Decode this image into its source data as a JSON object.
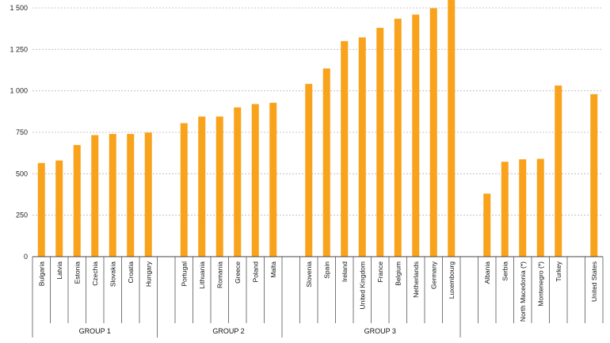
{
  "chart_data": {
    "type": "bar",
    "title": "",
    "xlabel": "",
    "ylabel": "",
    "ylim": [
      0,
      1500
    ],
    "yticks": [
      0,
      250,
      500,
      750,
      1000,
      1250,
      1500
    ],
    "ytick_labels": [
      "0",
      "250",
      "500",
      "750",
      "1 000",
      "1 250",
      "1 500"
    ],
    "grid": true,
    "bar_color": "#F9A21B",
    "slots": [
      {
        "label": "Bulgaria",
        "value": 565
      },
      {
        "label": "Latvia",
        "value": 580
      },
      {
        "label": "Estonia",
        "value": 673
      },
      {
        "label": "Czechia",
        "value": 733
      },
      {
        "label": "Slovakia",
        "value": 740
      },
      {
        "label": "Croatia",
        "value": 740
      },
      {
        "label": "Hungary",
        "value": 748
      },
      {
        "label": "",
        "value": null
      },
      {
        "label": "Portugal",
        "value": 805
      },
      {
        "label": "Lithuania",
        "value": 845
      },
      {
        "label": "Romania",
        "value": 845
      },
      {
        "label": "Greece",
        "value": 900
      },
      {
        "label": "Poland",
        "value": 920
      },
      {
        "label": "Malta",
        "value": 928
      },
      {
        "label": "",
        "value": null
      },
      {
        "label": "Slovenia",
        "value": 1042
      },
      {
        "label": "Spain",
        "value": 1135
      },
      {
        "label": "Ireland",
        "value": 1300
      },
      {
        "label": "United Kingdom",
        "value": 1322
      },
      {
        "label": "France",
        "value": 1380
      },
      {
        "label": "Belgium",
        "value": 1435
      },
      {
        "label": "Netherlands",
        "value": 1460
      },
      {
        "label": "Germany",
        "value": 1498
      },
      {
        "label": "Luxembourg",
        "value": 1600
      },
      {
        "label": "",
        "value": null
      },
      {
        "label": "Albania",
        "value": 380
      },
      {
        "label": "Serbia",
        "value": 572
      },
      {
        "label": "North Macedonia (*)",
        "value": 587
      },
      {
        "label": "Montenegro (*)",
        "value": 590
      },
      {
        "label": "Turkey",
        "value": 1032
      },
      {
        "label": "",
        "value": null
      },
      {
        "label": "United States",
        "value": 980
      }
    ],
    "groups": [
      {
        "label": "GROUP 1",
        "from": 0,
        "to": 7
      },
      {
        "label": "GROUP 2",
        "from": 8,
        "to": 14
      },
      {
        "label": "GROUP 3",
        "from": 15,
        "to": 24
      }
    ]
  }
}
